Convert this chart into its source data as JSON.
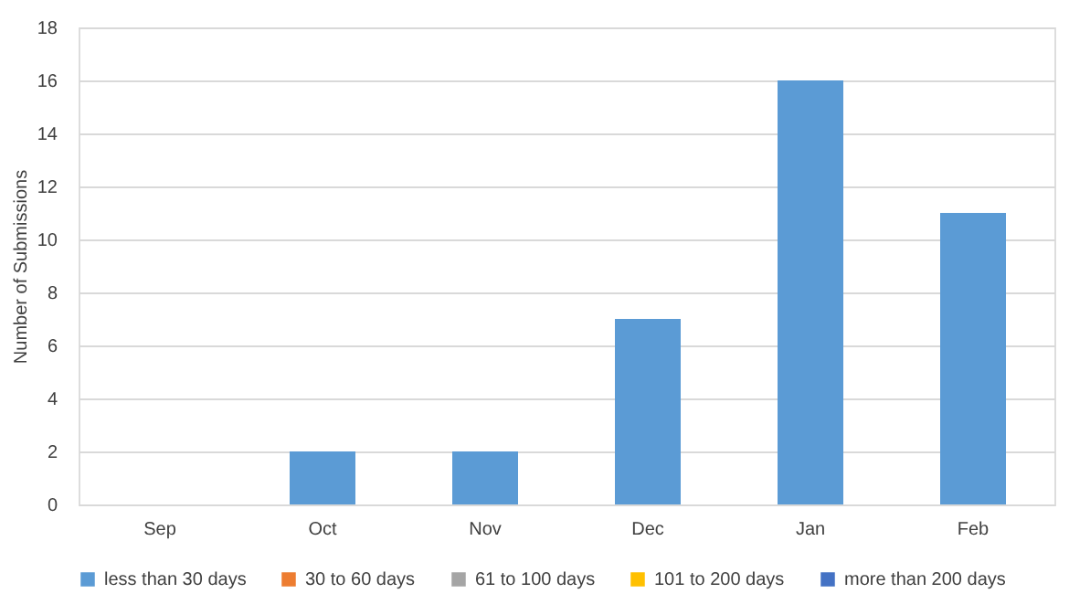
{
  "chart_data": {
    "type": "bar",
    "stacked": true,
    "ylabel": "Number of Submissions",
    "categories": [
      "Sep",
      "Oct",
      "Nov",
      "Dec",
      "Jan",
      "Feb"
    ],
    "series": [
      {
        "name": "less than 30 days",
        "color": "#5b9bd5",
        "values": [
          0,
          2,
          2,
          7,
          16,
          11
        ]
      },
      {
        "name": "30 to 60 days",
        "color": "#ed7d31",
        "values": [
          0,
          0,
          0,
          0,
          0,
          0
        ]
      },
      {
        "name": "61 to 100 days",
        "color": "#a5a5a5",
        "values": [
          0,
          0,
          0,
          0,
          0,
          0
        ]
      },
      {
        "name": "101 to 200 days",
        "color": "#ffc000",
        "values": [
          0,
          0,
          0,
          0,
          0,
          0
        ]
      },
      {
        "name": "more than 200 days",
        "color": "#4472c4",
        "values": [
          0,
          0,
          0,
          0,
          0,
          0
        ]
      }
    ],
    "ylim": [
      0,
      18
    ],
    "yticks": [
      0,
      2,
      4,
      6,
      8,
      10,
      12,
      14,
      16,
      18
    ],
    "grid": "y",
    "legend": "bottom"
  }
}
